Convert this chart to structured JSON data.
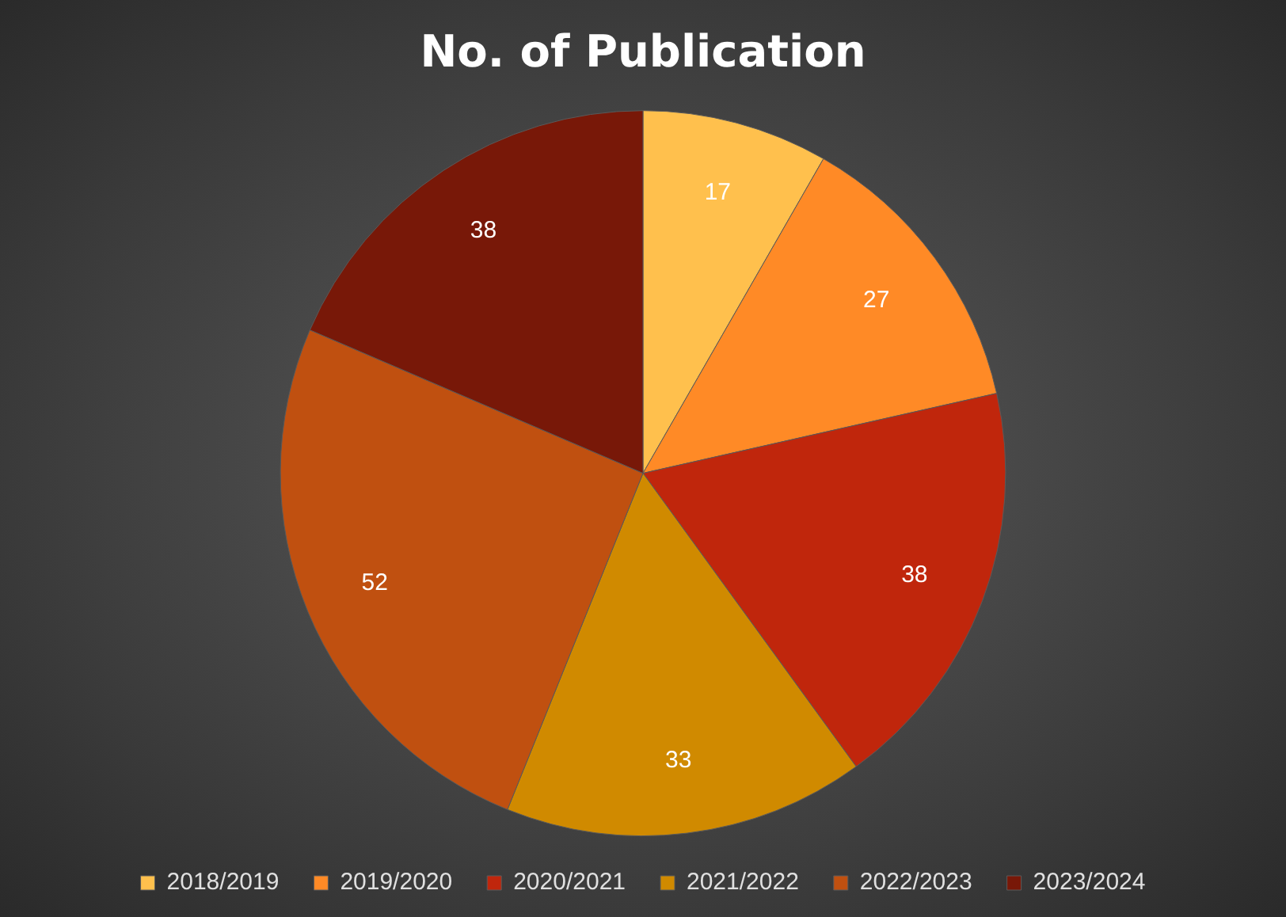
{
  "chart_data": {
    "type": "pie",
    "title": "No. of Publication",
    "categories": [
      "2018/2019",
      "2019/2020",
      "2020/2021",
      "2021/2022",
      "2022/2023",
      "2023/2024"
    ],
    "values": [
      17,
      27,
      38,
      33,
      52,
      38
    ],
    "colors": [
      "#ffc04d",
      "#ff8a26",
      "#c0260c",
      "#d08a00",
      "#c05010",
      "#781808"
    ],
    "data_labels": true,
    "legend": "bottom"
  }
}
